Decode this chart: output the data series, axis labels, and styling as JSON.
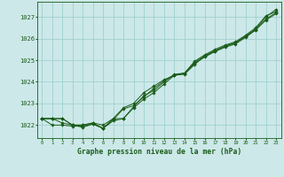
{
  "xlabel": "Graphe pression niveau de la mer (hPa)",
  "background_color": "#cce8e8",
  "plot_background": "#cce8e8",
  "grid_color": "#99cccc",
  "line_color": "#1a5c1a",
  "x_ticks": [
    0,
    1,
    2,
    3,
    4,
    5,
    6,
    7,
    8,
    9,
    10,
    11,
    12,
    13,
    14,
    15,
    16,
    17,
    18,
    19,
    20,
    21,
    22,
    23
  ],
  "ylim": [
    1021.4,
    1027.7
  ],
  "xlim": [
    -0.5,
    23.5
  ],
  "yticks": [
    1022,
    1023,
    1024,
    1025,
    1026,
    1027
  ],
  "series": [
    [
      1022.3,
      1022.3,
      1022.3,
      1022.0,
      1021.9,
      1022.05,
      1021.85,
      1022.3,
      1022.3,
      1022.8,
      1023.2,
      1023.5,
      1023.9,
      1024.3,
      1024.35,
      1024.8,
      1025.2,
      1025.45,
      1025.65,
      1025.8,
      1026.1,
      1026.45,
      1027.0,
      1027.35
    ],
    [
      1022.3,
      1022.3,
      1022.1,
      1022.0,
      1022.0,
      1022.1,
      1022.0,
      1022.3,
      1022.8,
      1023.0,
      1023.5,
      1023.8,
      1024.1,
      1024.3,
      1024.4,
      1024.9,
      1025.2,
      1025.4,
      1025.65,
      1025.8,
      1026.1,
      1026.4,
      1026.9,
      1027.2
    ],
    [
      1022.3,
      1022.3,
      1022.3,
      1022.0,
      1022.0,
      1022.1,
      1021.85,
      1022.2,
      1022.3,
      1022.85,
      1023.35,
      1023.6,
      1024.0,
      1024.35,
      1024.4,
      1024.95,
      1025.25,
      1025.5,
      1025.7,
      1025.85,
      1026.15,
      1026.5,
      1027.05,
      1027.25
    ],
    [
      1022.3,
      1022.0,
      1022.0,
      1021.95,
      1021.95,
      1022.05,
      1021.85,
      1022.25,
      1022.75,
      1022.9,
      1023.3,
      1023.7,
      1024.05,
      1024.3,
      1024.4,
      1024.85,
      1025.15,
      1025.4,
      1025.6,
      1025.75,
      1026.05,
      1026.4,
      1026.85,
      1027.15
    ]
  ]
}
